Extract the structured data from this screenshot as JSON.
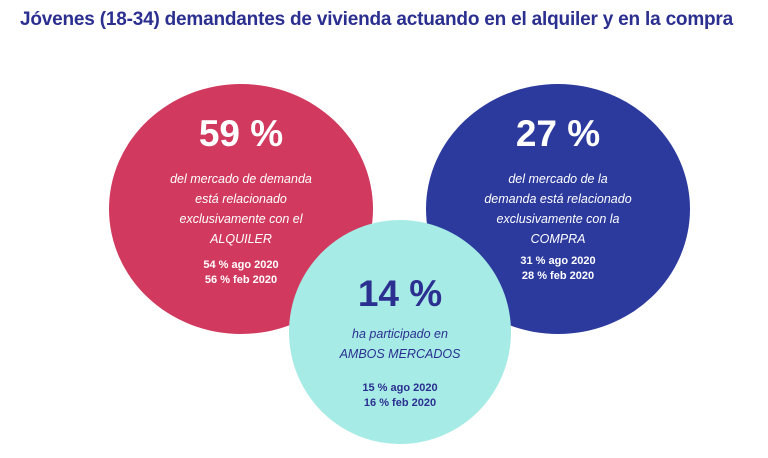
{
  "title": "Jóvenes (18-34) demandantes de vivienda actuando en el alquiler y en la compra",
  "circles": {
    "rent": {
      "color": "#d13a5e",
      "percent": "59 %",
      "description": [
        "del mercado de demanda",
        "está relacionado",
        "exclusivamente con el",
        "ALQUILER"
      ],
      "history": [
        "54 % ago 2020",
        "56 % feb 2020"
      ]
    },
    "buy": {
      "color": "#2c3a9e",
      "percent": "27 %",
      "description": [
        "del mercado de la",
        "demanda está relacionado",
        "exclusivamente con la",
        "COMPRA"
      ],
      "history": [
        "31 % ago 2020",
        "28 % feb 2020"
      ]
    },
    "both": {
      "color": "#a6ebe6",
      "percent": "14 %",
      "description": [
        "ha participado en",
        "AMBOS MERCADOS"
      ],
      "history": [
        "15 % ago 2020",
        "16 % feb 2020"
      ]
    }
  }
}
